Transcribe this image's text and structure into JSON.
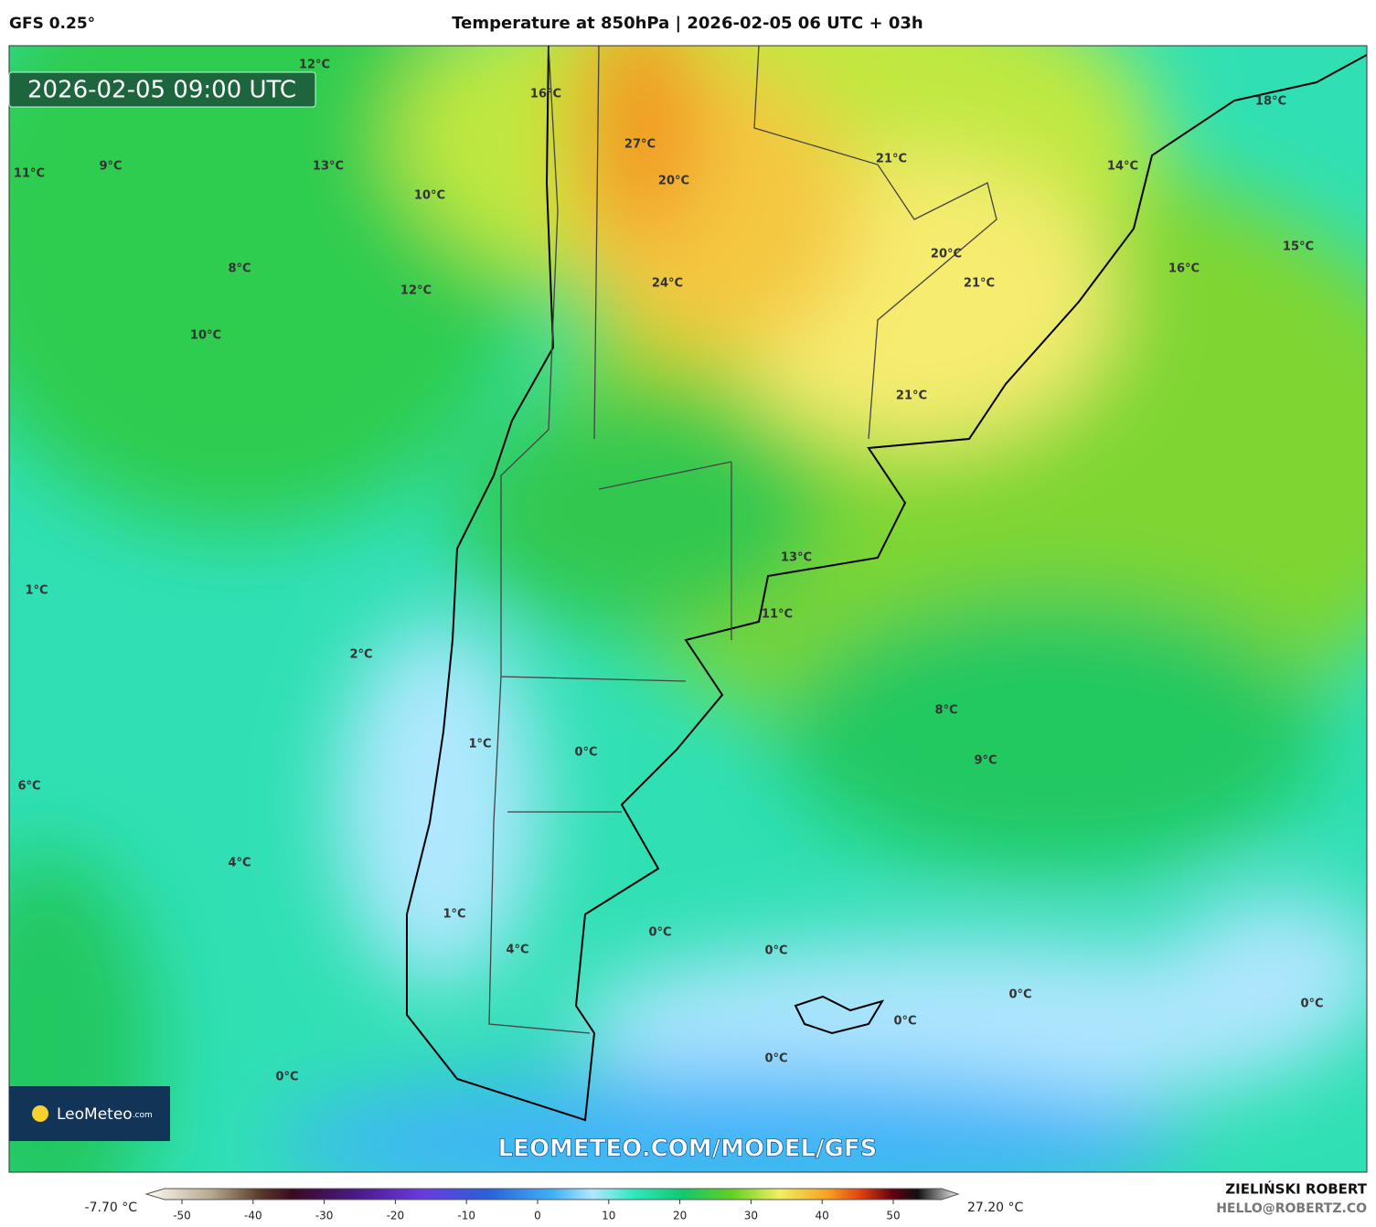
{
  "header": {
    "model": "GFS 0.25°",
    "title": "Temperature at 850hPa | 2026-02-05 06 UTC + 03h"
  },
  "valid_time": "2026-02-05 09:00 UTC",
  "labels": [
    "12°C",
    "16°C",
    "18°C",
    "11°C",
    "9°C",
    "13°C",
    "10°C",
    "27°C",
    "20°C",
    "21°C",
    "14°C",
    "8°C",
    "12°C",
    "24°C",
    "20°C",
    "21°C",
    "16°C",
    "15°C",
    "10°C",
    "21°C",
    "13°C",
    "1°C",
    "11°C",
    "2°C",
    "8°C",
    "1°C",
    "0°C",
    "9°C",
    "6°C",
    "4°C",
    "1°C",
    "0°C",
    "4°C",
    "0°C",
    "0°C",
    "0°C",
    "0°C",
    "0°C",
    "0°C"
  ],
  "logo": {
    "name": "LeoMeteo",
    "suffix": ".com"
  },
  "watermark": "LEOMETEO.COM/MODEL/GFS",
  "colorbar": {
    "min_label": "-7.70 °C",
    "max_label": "27.20 °C",
    "ticks": [
      -50,
      -40,
      -30,
      -20,
      -10,
      0,
      10,
      20,
      30,
      40,
      50
    ]
  },
  "author": {
    "name": "ZIELIŃSKI ROBERT",
    "email": "HELLO@ROBERTZ.CO"
  }
}
